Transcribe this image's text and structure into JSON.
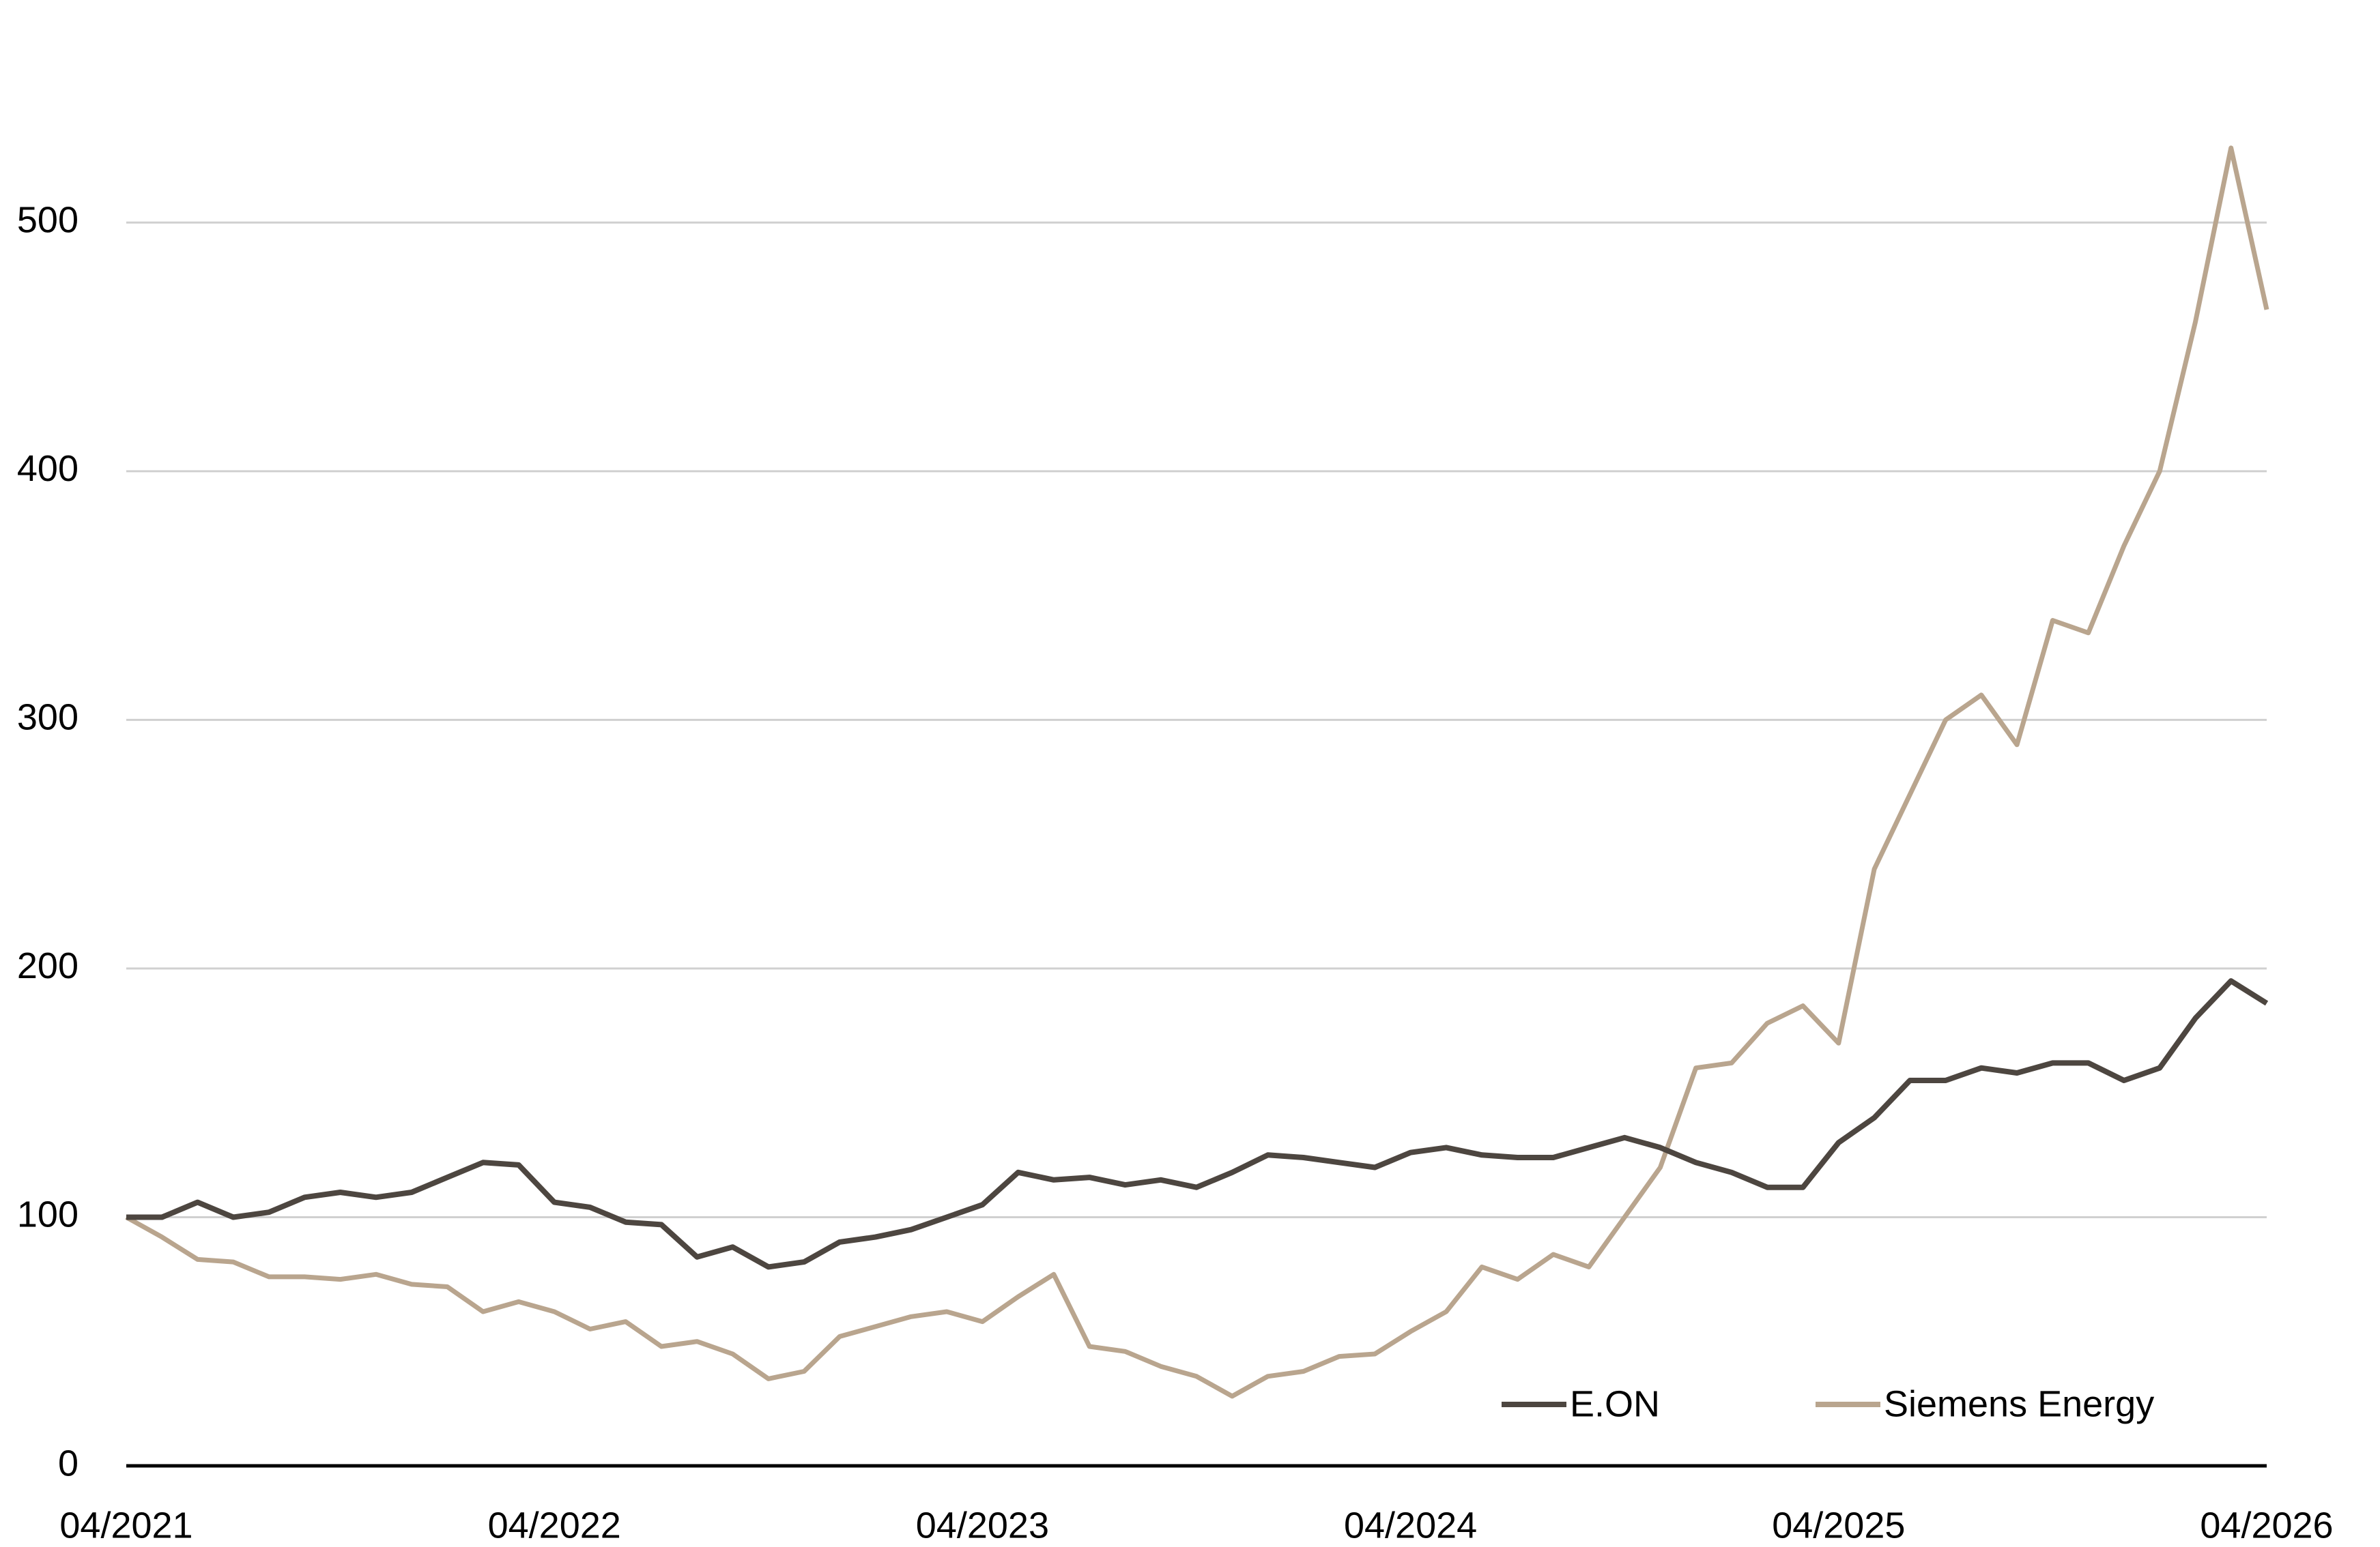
{
  "chart_data": {
    "type": "line",
    "categories": [
      "04/2021",
      null,
      null,
      null,
      null,
      null,
      null,
      null,
      null,
      null,
      null,
      null,
      "04/2022",
      null,
      null,
      null,
      null,
      null,
      null,
      null,
      null,
      null,
      null,
      null,
      "04/2023",
      null,
      null,
      null,
      null,
      null,
      null,
      null,
      null,
      null,
      null,
      null,
      "04/2024",
      null,
      null,
      null,
      null,
      null,
      null,
      null,
      null,
      null,
      null,
      null,
      "04/2025",
      null,
      null,
      null,
      null,
      null,
      null,
      null,
      null,
      null,
      null,
      null,
      "04/2026"
    ],
    "series": [
      {
        "name": "E.ON",
        "color": "#4d4640",
        "values": [
          100,
          100,
          106,
          100,
          102,
          108,
          110,
          108,
          110,
          116,
          122,
          121,
          106,
          104,
          98,
          97,
          84,
          88,
          80,
          82,
          90,
          92,
          95,
          100,
          105,
          118,
          115,
          116,
          113,
          115,
          112,
          118,
          125,
          124,
          122,
          120,
          126,
          128,
          125,
          124,
          124,
          128,
          132,
          128,
          122,
          118,
          112,
          112,
          130,
          140,
          155,
          155,
          160,
          158,
          162,
          162,
          155,
          160,
          180,
          195,
          186
        ]
      },
      {
        "name": "Siemens Energy",
        "color": "#b9a58e",
        "values": [
          100,
          92,
          83,
          82,
          76,
          76,
          75,
          77,
          73,
          72,
          62,
          66,
          62,
          55,
          58,
          48,
          50,
          45,
          35,
          38,
          52,
          56,
          60,
          62,
          58,
          68,
          77,
          48,
          46,
          40,
          36,
          28,
          36,
          38,
          44,
          45,
          54,
          62,
          80,
          75,
          85,
          80,
          100,
          120,
          160,
          162,
          178,
          185,
          170,
          240,
          270,
          300,
          310,
          290,
          340,
          335,
          370,
          400,
          460,
          530,
          465
        ]
      }
    ],
    "ylim": [
      0,
      550
    ],
    "yticks": [
      0,
      100,
      200,
      300,
      400,
      500
    ],
    "grid": true,
    "legend": "lower right"
  }
}
